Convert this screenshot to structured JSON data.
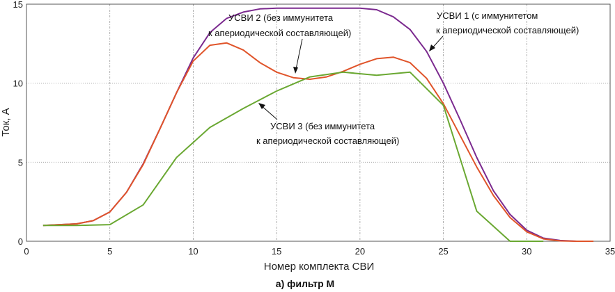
{
  "chart_data": {
    "type": "line",
    "xlabel": "Номер комплекта СВИ",
    "ylabel": "Ток, А",
    "caption": "а) фильтр М",
    "xlim": [
      0,
      35
    ],
    "ylim": [
      0,
      15
    ],
    "xticks": [
      "0",
      "5",
      "10",
      "15",
      "20",
      "25",
      "30",
      "35"
    ],
    "yticks": [
      "0",
      "5",
      "10",
      "15"
    ],
    "grid": true,
    "series": [
      {
        "color": "#7b2a8f",
        "x": [
          1,
          2,
          3,
          4,
          5,
          6,
          7,
          8,
          9,
          10,
          11,
          12,
          13,
          14,
          15,
          16,
          17,
          18,
          19,
          20,
          21,
          22,
          23,
          24,
          25,
          26,
          27,
          28,
          29,
          30,
          31,
          32,
          33
        ],
        "y": [
          1.0,
          1.05,
          1.1,
          1.3,
          1.85,
          3.1,
          4.9,
          7.1,
          9.4,
          11.6,
          13.2,
          14.1,
          14.5,
          14.7,
          14.75,
          14.75,
          14.75,
          14.75,
          14.75,
          14.75,
          14.65,
          14.2,
          13.4,
          12.0,
          10.0,
          7.7,
          5.3,
          3.2,
          1.7,
          0.7,
          0.2,
          0.05,
          0.0
        ]
      },
      {
        "color": "#e0542a",
        "x": [
          1,
          2,
          3,
          4,
          5,
          6,
          7,
          8,
          9,
          10,
          11,
          12,
          13,
          14,
          15,
          16,
          17,
          18,
          19,
          20,
          21,
          22,
          23,
          24,
          25,
          26,
          27,
          28,
          29,
          30,
          31,
          32,
          33,
          34
        ],
        "y": [
          1.0,
          1.05,
          1.1,
          1.3,
          1.85,
          3.1,
          4.85,
          7.1,
          9.4,
          11.4,
          12.4,
          12.55,
          12.1,
          11.3,
          10.7,
          10.35,
          10.25,
          10.4,
          10.75,
          11.2,
          11.55,
          11.65,
          11.3,
          10.3,
          8.7,
          6.7,
          4.7,
          2.9,
          1.5,
          0.6,
          0.15,
          0.02,
          0.0,
          0.0
        ]
      },
      {
        "color": "#6aa832",
        "x": [
          1,
          3,
          5,
          7,
          9,
          11,
          13,
          15,
          17,
          19,
          21,
          23,
          25,
          27,
          29,
          31
        ],
        "y": [
          1.0,
          1.0,
          1.05,
          2.3,
          5.3,
          7.2,
          8.4,
          9.5,
          10.4,
          10.7,
          10.5,
          10.7,
          8.6,
          1.9,
          0.0,
          0.0
        ]
      }
    ],
    "annotations": [
      {
        "line1": "УСВИ    2 (без иммунитета",
        "line2": "к апериодической составляющей)"
      },
      {
        "line1": "УСВИ    1 (с иммунитетом",
        "line2": "к апериодической составляющей)"
      },
      {
        "line1": "УСВИ    3 (без иммунитета",
        "line2": "к апериодической составляющей)"
      }
    ]
  }
}
